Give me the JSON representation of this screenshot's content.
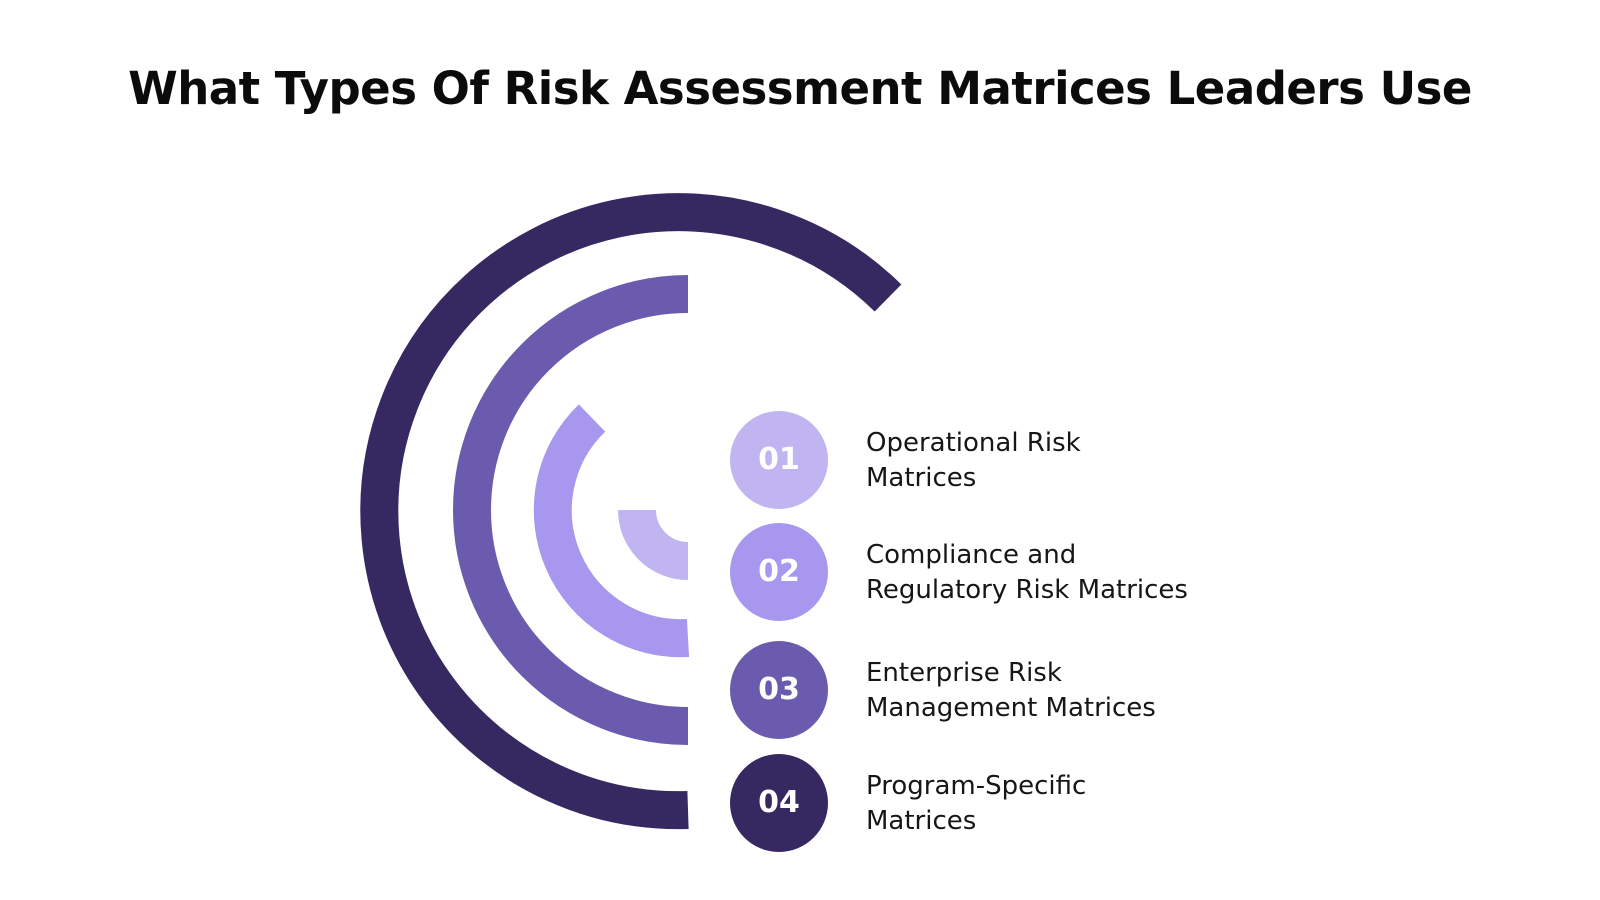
{
  "title": "What Types Of Risk Assessment Matrices Leaders Use",
  "colors": {
    "level1": "#c0b4f1",
    "level2": "#a897ee",
    "level3": "#6b5bae",
    "level4": "#362962"
  },
  "items": [
    {
      "number": "01",
      "line1": "Operational Risk",
      "line2": "Matrices",
      "color": "#c0b4f1"
    },
    {
      "number": "02",
      "line1": "Compliance and",
      "line2": "Regulatory Risk Matrices",
      "color": "#a897ee"
    },
    {
      "number": "03",
      "line1": "Enterprise Risk",
      "line2": "Management Matrices",
      "color": "#6b5bae"
    },
    {
      "number": "04",
      "line1": "Program-Specific",
      "line2": "Matrices",
      "color": "#362962"
    }
  ]
}
